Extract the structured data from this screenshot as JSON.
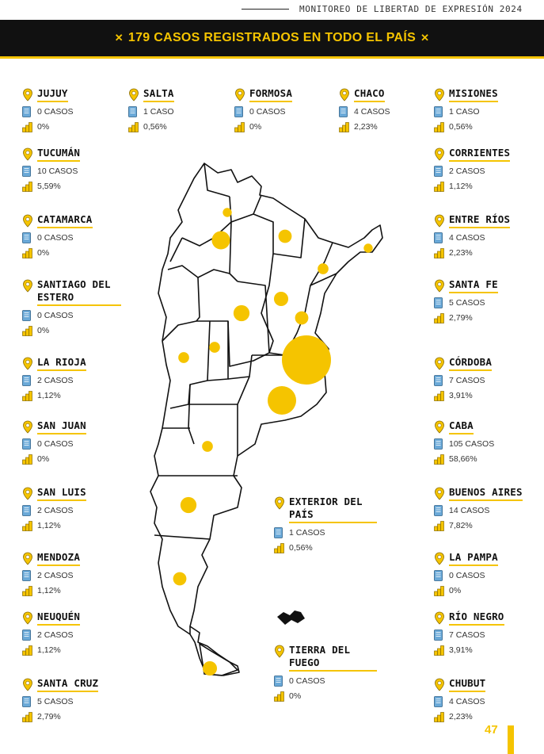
{
  "header": {
    "doc_title": "MONITOREO DE LIBERTAD DE EXPRESIÓN 2024"
  },
  "banner": {
    "text": "179 CASOS REGISTRADOS EN TODO EL PAÍS"
  },
  "colors": {
    "accent": "#f5c400",
    "banner_bg": "#111111",
    "pin": "#f5c400",
    "book": "#6aa9d8"
  },
  "icons": {
    "pin": "location-pin-icon",
    "book": "book-icon",
    "coins": "coins-icon"
  },
  "provinces": [
    {
      "id": "jujuy",
      "name": "JUJUY",
      "cases": "0 CASOS",
      "pct": "0%",
      "count": 0
    },
    {
      "id": "salta",
      "name": "SALTA",
      "cases": "1 CASO",
      "pct": "0,56%",
      "count": 1
    },
    {
      "id": "formosa",
      "name": "FORMOSA",
      "cases": "0 CASOS",
      "pct": "0%",
      "count": 0
    },
    {
      "id": "chaco",
      "name": "CHACO",
      "cases": "4 CASOS",
      "pct": "2,23%",
      "count": 4
    },
    {
      "id": "misiones",
      "name": "MISIONES",
      "cases": "1 CASO",
      "pct": "0,56%",
      "count": 1
    },
    {
      "id": "tucuman",
      "name": "TUCUMÁN",
      "cases": "10 CASOS",
      "pct": "5,59%",
      "count": 10
    },
    {
      "id": "corrientes",
      "name": "CORRIENTES",
      "cases": "2 CASOS",
      "pct": "1,12%",
      "count": 2
    },
    {
      "id": "catamarca",
      "name": "CATAMARCA",
      "cases": "0 CASOS",
      "pct": "0%",
      "count": 0
    },
    {
      "id": "entre-rios",
      "name": "ENTRE RÍOS",
      "cases": "4 CASOS",
      "pct": "2,23%",
      "count": 4
    },
    {
      "id": "santiago-del-estero",
      "name": "SANTIAGO DEL ESTERO",
      "cases": "0 CASOS",
      "pct": "0%",
      "count": 0
    },
    {
      "id": "santa-fe",
      "name": "SANTA FE",
      "cases": "5 CASOS",
      "pct": "2,79%",
      "count": 5
    },
    {
      "id": "la-rioja",
      "name": "LA RIOJA",
      "cases": "2 CASOS",
      "pct": "1,12%",
      "count": 2
    },
    {
      "id": "cordoba",
      "name": "CÓRDOBA",
      "cases": "7 CASOS",
      "pct": "3,91%",
      "count": 7
    },
    {
      "id": "san-juan",
      "name": "SAN JUAN",
      "cases": "0 CASOS",
      "pct": "0%",
      "count": 0
    },
    {
      "id": "caba",
      "name": "CABA",
      "cases": "105 CASOS",
      "pct": "58,66%",
      "count": 105
    },
    {
      "id": "san-luis",
      "name": "SAN LUIS",
      "cases": "2 CASOS",
      "pct": "1,12%",
      "count": 2
    },
    {
      "id": "buenos-aires",
      "name": "BUENOS AIRES",
      "cases": "14 CASOS",
      "pct": "7,82%",
      "count": 14
    },
    {
      "id": "exterior",
      "name": "EXTERIOR DEL PAÍS",
      "cases": "1 CASOS",
      "pct": "0,56%",
      "count": 1
    },
    {
      "id": "mendoza",
      "name": "MENDOZA",
      "cases": "2 CASOS",
      "pct": "1,12%",
      "count": 2
    },
    {
      "id": "la-pampa",
      "name": "LA PAMPA",
      "cases": "0 CASOS",
      "pct": "0%",
      "count": 0
    },
    {
      "id": "neuquen",
      "name": "NEUQUÉN",
      "cases": "2 CASOS",
      "pct": "1,12%",
      "count": 2
    },
    {
      "id": "rio-negro",
      "name": "RÍO NEGRO",
      "cases": "7 CASOS",
      "pct": "3,91%",
      "count": 7
    },
    {
      "id": "tierra-del-fuego",
      "name": "TIERRA DEL FUEGO",
      "cases": "0 CASOS",
      "pct": "0%",
      "count": 0
    },
    {
      "id": "santa-cruz",
      "name": "SANTA CRUZ",
      "cases": "5 CASOS",
      "pct": "2,79%",
      "count": 5
    },
    {
      "id": "chubut",
      "name": "CHUBUT",
      "cases": "4 CASOS",
      "pct": "2,23%",
      "count": 4
    }
  ],
  "page": {
    "number": "47"
  }
}
